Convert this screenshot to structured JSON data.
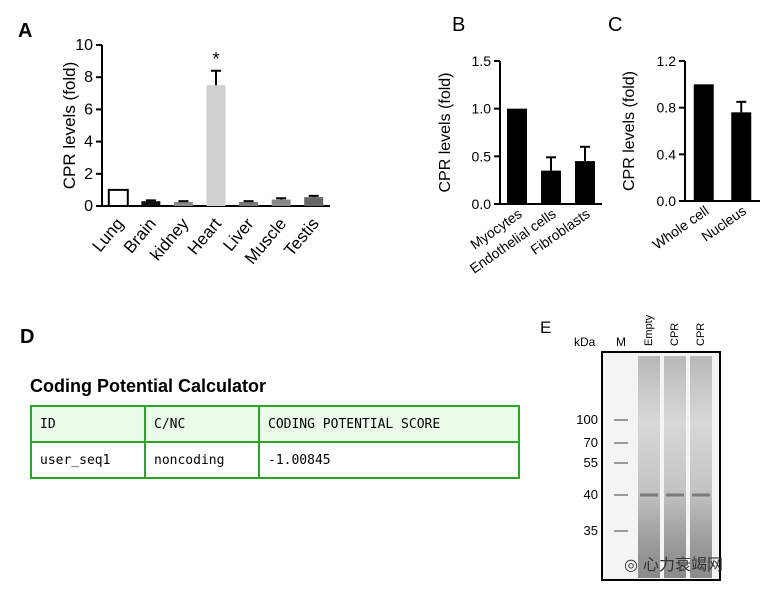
{
  "panels": {
    "a": {
      "label": "A"
    },
    "b": {
      "label": "B"
    },
    "c": {
      "label": "C"
    },
    "d": {
      "label": "D"
    },
    "e": {
      "label": "E"
    }
  },
  "chart_data": [
    {
      "id": "A",
      "type": "bar",
      "ylabel": "CPR levels (fold)",
      "ylim": [
        0,
        10
      ],
      "yticks": [
        0,
        2,
        4,
        6,
        8,
        10
      ],
      "categories": [
        "Lung",
        "Brain",
        "kidney",
        "Heart",
        "Liver",
        "Muscle",
        "Testis"
      ],
      "values": [
        1.0,
        0.3,
        0.25,
        7.5,
        0.25,
        0.4,
        0.55
      ],
      "errors": [
        0,
        0.05,
        0.05,
        0.9,
        0.05,
        0.08,
        0.08
      ],
      "colors": [
        "#ffffff",
        "#111111",
        "#888888",
        "#d0d0d0",
        "#777777",
        "#888888",
        "#666666"
      ],
      "annotations": [
        {
          "category": "Heart",
          "text": "*"
        }
      ]
    },
    {
      "id": "B",
      "type": "bar",
      "ylabel": "CPR levels (fold)",
      "ylim": [
        0,
        1.5
      ],
      "yticks": [
        0.0,
        0.5,
        1.0,
        1.5
      ],
      "categories": [
        "Myocytes",
        "Endothelial cells",
        "Fibroblasts"
      ],
      "values": [
        1.0,
        0.35,
        0.45
      ],
      "errors": [
        0,
        0.14,
        0.15
      ],
      "colors": [
        "#000000",
        "#000000",
        "#000000"
      ]
    },
    {
      "id": "C",
      "type": "bar",
      "ylabel": "CPR levels (fold)",
      "ylim": [
        0,
        1.2
      ],
      "yticks": [
        0.0,
        0.4,
        0.8,
        1.2
      ],
      "categories": [
        "Whole cell",
        "Nucleus"
      ],
      "values": [
        1.0,
        0.76
      ],
      "errors": [
        0,
        0.09
      ],
      "colors": [
        "#000000",
        "#000000"
      ]
    }
  ],
  "cpc": {
    "title": "Coding Potential Calculator",
    "headers": [
      "ID",
      "C/NC",
      "CODING POTENTIAL SCORE"
    ],
    "row": [
      "user_seq1",
      "noncoding",
      "-1.00845"
    ]
  },
  "gel": {
    "unit": "kDa",
    "lanes": [
      "M",
      "Empty",
      "CPR",
      "CPR"
    ],
    "markers": [
      "100",
      "70",
      "55",
      "40",
      "35"
    ]
  },
  "watermark": {
    "text": "心力衰竭网"
  }
}
